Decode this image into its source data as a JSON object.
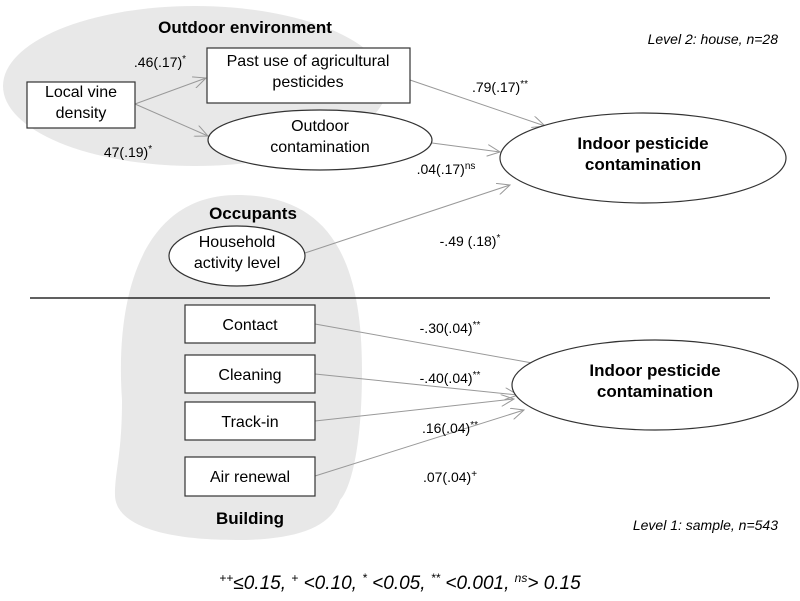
{
  "level2": {
    "label": "Level 2: house, n=28",
    "groups": {
      "outdoor": "Outdoor environment",
      "occupants": "Occupants"
    },
    "nodes": {
      "vine": [
        "Local vine",
        "density"
      ],
      "past": [
        "Past use of agricultural",
        "pesticides"
      ],
      "outdoor": [
        "Outdoor",
        "contamination"
      ],
      "household": [
        "Household",
        "activity level"
      ],
      "indoor": [
        "Indoor pesticide",
        "contamination"
      ]
    },
    "edges": {
      "vine_past": {
        "coef": ".46(.17)",
        "sig": "*"
      },
      "vine_outdoor": {
        "coef": "47(.19)",
        "sig": "*"
      },
      "past_indoor": {
        "coef": ".79(.17)",
        "sig": "**"
      },
      "outdoor_indoor": {
        "coef": ".04(.17)",
        "sig": "ns"
      },
      "household_indoor": {
        "coef": "-.49 (.18)",
        "sig": "*"
      }
    }
  },
  "level1": {
    "label": "Level 1: sample, n=543",
    "group": "Building",
    "nodes": {
      "contact": "Contact",
      "cleaning": "Cleaning",
      "trackin": "Track-in",
      "air": "Air renewal",
      "indoor": [
        "Indoor pesticide",
        "contamination"
      ]
    },
    "edges": {
      "contact": {
        "coef": "-.30(.04)",
        "sig": "**"
      },
      "cleaning": {
        "coef": "-.40(.04)",
        "sig": "**"
      },
      "trackin": {
        "coef": ".16(.04)",
        "sig": "**"
      },
      "air": {
        "coef": ".07(.04)",
        "sig": "+"
      }
    }
  },
  "legend": [
    {
      "sym": "++",
      "text": "≤0.15, "
    },
    {
      "sym": "+",
      "text": " <0.10, "
    },
    {
      "sym": "*",
      "text": " <0.05, "
    },
    {
      "sym": "**",
      "text": " <0.001, "
    },
    {
      "sym": "ns",
      "text": "> 0.15"
    }
  ]
}
